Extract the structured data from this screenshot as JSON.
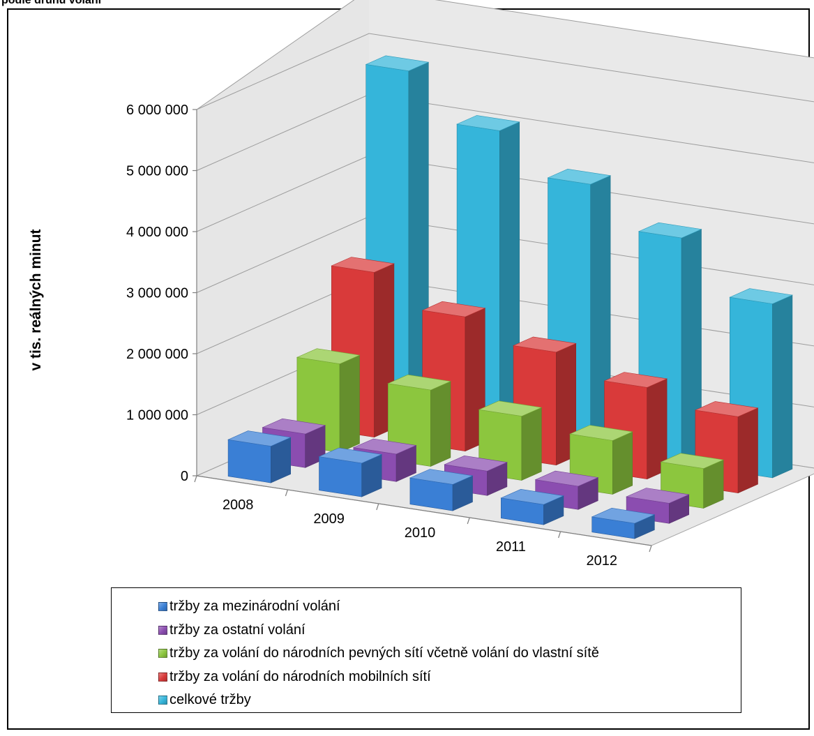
{
  "header": {
    "label": "podle druhu volání"
  },
  "chart_data": {
    "type": "bar",
    "subtype": "3d-column",
    "title": "",
    "xlabel": "",
    "ylabel": "v tis. reálných minut",
    "categories": [
      "2008",
      "2009",
      "2010",
      "2011",
      "2012"
    ],
    "ylim": [
      0,
      6000000
    ],
    "ytick_values": [
      0,
      1000000,
      2000000,
      3000000,
      4000000,
      5000000,
      6000000
    ],
    "ytick_labels": [
      "0",
      "1 000 000",
      "2 000 000",
      "3 000 000",
      "4 000 000",
      "5 000 000",
      "6 000 000"
    ],
    "grid": true,
    "legend_position": "bottom",
    "series": [
      {
        "name": "tržby za mezinárodní volání",
        "color": "#3a7fd5",
        "values": [
          600000,
          550000,
          430000,
          330000,
          250000
        ]
      },
      {
        "name": "tržby za ostatní volání",
        "color": "#8b4db0",
        "values": [
          550000,
          450000,
          400000,
          380000,
          330000
        ]
      },
      {
        "name": "tržby za volání do národních pevných sítí včetně volání do vlastní sítě",
        "color": "#8cc63e",
        "values": [
          1450000,
          1250000,
          1050000,
          880000,
          650000
        ]
      },
      {
        "name": "tržby za volání do národních mobilních sítí",
        "color": "#d93a3a",
        "values": [
          2700000,
          2200000,
          1850000,
          1500000,
          1250000
        ]
      },
      {
        "name": "celkové tržby",
        "color": "#35b5da",
        "values": [
          5750000,
          5000000,
          4350000,
          3700000,
          2850000
        ]
      }
    ]
  }
}
